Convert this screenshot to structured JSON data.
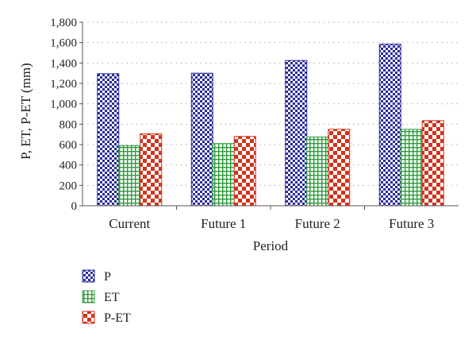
{
  "chart_data": {
    "type": "bar",
    "title": "",
    "xlabel": "Period",
    "ylabel": "P, ET, P-ET (mm)",
    "categories": [
      "Current",
      "Future 1",
      "Future 2",
      "Future 3"
    ],
    "series": [
      {
        "name": "P",
        "values": [
          1295,
          1300,
          1425,
          1585
        ],
        "color": "#2b2b9a",
        "pattern": "checker"
      },
      {
        "name": "ET",
        "values": [
          590,
          610,
          675,
          750
        ],
        "color": "#2e9b3c",
        "pattern": "grid"
      },
      {
        "name": "P-ET",
        "values": [
          705,
          680,
          750,
          835
        ],
        "color": "#d0341c",
        "pattern": "checker-large"
      }
    ],
    "ylim": [
      0,
      1800
    ],
    "yticks": [
      "0",
      "200",
      "400",
      "600",
      "800",
      "1,000",
      "1,200",
      "1,400",
      "1,600",
      "1,800"
    ],
    "grid": "horizontal dotted",
    "legend_position": "bottom-left"
  }
}
